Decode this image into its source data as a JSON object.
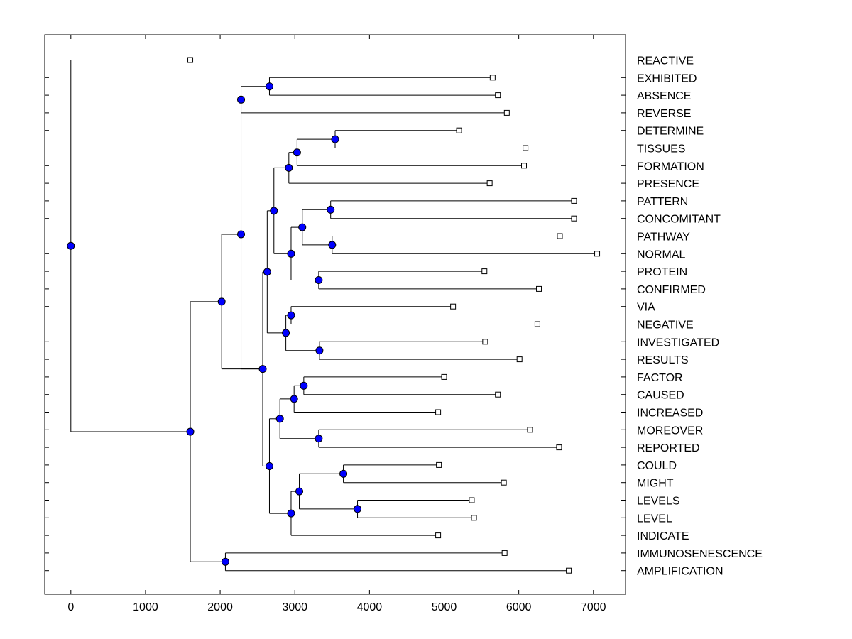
{
  "chart_data": {
    "type": "dendrogram",
    "orientation": "leaves-right",
    "xlabel": "",
    "ylabel": "",
    "title": "",
    "xlim": [
      -350,
      7430
    ],
    "x_ticks": [
      0,
      1000,
      2000,
      3000,
      4000,
      5000,
      6000,
      7000
    ],
    "x_tick_labels": [
      "0",
      "1000",
      "2000",
      "3000",
      "4000",
      "5000",
      "6000",
      "7000"
    ],
    "colors": {
      "node": "#0000ff",
      "line": "#000000",
      "leaf_fill": "#ffffff"
    },
    "leaves": [
      {
        "label": "REACTIVE",
        "x": 1600
      },
      {
        "label": "EXHIBITED",
        "x": 5650
      },
      {
        "label": "ABSENCE",
        "x": 5720
      },
      {
        "label": "REVERSE",
        "x": 5840
      },
      {
        "label": "DETERMINE",
        "x": 5200
      },
      {
        "label": "TISSUES",
        "x": 6090
      },
      {
        "label": "FORMATION",
        "x": 6070
      },
      {
        "label": "PRESENCE",
        "x": 5610
      },
      {
        "label": "PATTERN",
        "x": 6740
      },
      {
        "label": "CONCOMITANT",
        "x": 6740
      },
      {
        "label": "PATHWAY",
        "x": 6550
      },
      {
        "label": "NORMAL",
        "x": 7050
      },
      {
        "label": "PROTEIN",
        "x": 5540
      },
      {
        "label": "CONFIRMED",
        "x": 6270
      },
      {
        "label": "VIA",
        "x": 5120
      },
      {
        "label": "NEGATIVE",
        "x": 6250
      },
      {
        "label": "INVESTIGATED",
        "x": 5550
      },
      {
        "label": "RESULTS",
        "x": 6010
      },
      {
        "label": "FACTOR",
        "x": 5000
      },
      {
        "label": "CAUSED",
        "x": 5720
      },
      {
        "label": "INCREASED",
        "x": 4920
      },
      {
        "label": "MOREOVER",
        "x": 6150
      },
      {
        "label": "REPORTED",
        "x": 6540
      },
      {
        "label": "COULD",
        "x": 4930
      },
      {
        "label": "MIGHT",
        "x": 5800
      },
      {
        "label": "LEVELS",
        "x": 5370
      },
      {
        "label": "LEVEL",
        "x": 5400
      },
      {
        "label": "INDICATE",
        "x": 4920
      },
      {
        "label": "IMMUNOSENESCENCE",
        "x": 5810
      },
      {
        "label": "AMPLIFICATION",
        "x": 6670
      }
    ],
    "merges": [
      {
        "id": "n1",
        "height": 2660,
        "children": [
          "L1",
          "L2"
        ]
      },
      {
        "id": "n2",
        "height": 2280,
        "children": [
          "n1",
          "L3"
        ]
      },
      {
        "id": "n3",
        "height": 3540,
        "children": [
          "L4",
          "L5"
        ]
      },
      {
        "id": "n4",
        "height": 3030,
        "children": [
          "n3",
          "L6"
        ]
      },
      {
        "id": "n5",
        "height": 2920,
        "children": [
          "n4",
          "L7"
        ]
      },
      {
        "id": "n6",
        "height": 3480,
        "children": [
          "L8",
          "L9"
        ]
      },
      {
        "id": "n7",
        "height": 3500,
        "children": [
          "L10",
          "L11"
        ]
      },
      {
        "id": "n8",
        "height": 3100,
        "children": [
          "n6",
          "n7"
        ]
      },
      {
        "id": "n9",
        "height": 3320,
        "children": [
          "L12",
          "L13"
        ]
      },
      {
        "id": "n10",
        "height": 2950,
        "children": [
          "n8",
          "n9"
        ]
      },
      {
        "id": "n11",
        "height": 2720,
        "children": [
          "n5",
          "n10"
        ]
      },
      {
        "id": "n12",
        "height": 2950,
        "children": [
          "L14",
          "L15"
        ]
      },
      {
        "id": "n13",
        "height": 3330,
        "children": [
          "L16",
          "L17"
        ]
      },
      {
        "id": "n14",
        "height": 2880,
        "children": [
          "n12",
          "n13"
        ]
      },
      {
        "id": "n15",
        "height": 2630,
        "children": [
          "n11",
          "n14"
        ]
      },
      {
        "id": "n16",
        "height": 3120,
        "children": [
          "L18",
          "L19"
        ]
      },
      {
        "id": "n17",
        "height": 2990,
        "children": [
          "n16",
          "L20"
        ]
      },
      {
        "id": "n18",
        "height": 3320,
        "children": [
          "L21",
          "L22"
        ]
      },
      {
        "id": "n19",
        "height": 2800,
        "children": [
          "n17",
          "n18"
        ]
      },
      {
        "id": "n20",
        "height": 3650,
        "children": [
          "L23",
          "L24"
        ]
      },
      {
        "id": "n21",
        "height": 3840,
        "children": [
          "L25",
          "L26"
        ]
      },
      {
        "id": "n22",
        "height": 3060,
        "children": [
          "n20",
          "n21"
        ]
      },
      {
        "id": "n23",
        "height": 2950,
        "children": [
          "n22",
          "L27"
        ]
      },
      {
        "id": "n24",
        "height": 2660,
        "children": [
          "n19",
          "n23"
        ]
      },
      {
        "id": "n25",
        "height": 2570,
        "children": [
          "n15",
          "n24"
        ]
      },
      {
        "id": "n26",
        "height": 2280,
        "children": [
          "n2",
          "n25"
        ]
      },
      {
        "id": "n27",
        "height": 2020,
        "children": [
          "n26",
          "n25"
        ]
      },
      {
        "id": "n28",
        "height": 2070,
        "children": [
          "L28",
          "L29"
        ]
      },
      {
        "id": "n29",
        "height": 1600,
        "children": [
          "n27",
          "n28"
        ]
      },
      {
        "id": "n30",
        "height": 0,
        "children": [
          "L0",
          "n29"
        ]
      }
    ]
  }
}
